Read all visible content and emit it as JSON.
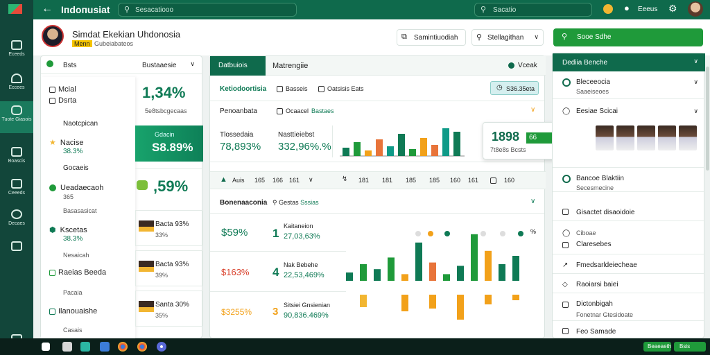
{
  "app": {
    "title": "Iпdoпusiat",
    "search_placeholder": "Sesacatiooo",
    "search2": "Sacatio",
    "profile_label": "Eeeus"
  },
  "rail": {
    "items": [
      {
        "label": "Eceeds"
      },
      {
        "label": "Eccees"
      },
      {
        "label": "Tuote Giasois"
      },
      {
        "label": "Boascis"
      },
      {
        "label": "Ceeeds"
      },
      {
        "label": "Decaes"
      }
    ]
  },
  "header": {
    "title": "Simdat Ekekian Uhdonosia",
    "badge": "Menn",
    "subtitle": "Gubeiabateos",
    "btn_simulasi": "Samintiuodiah",
    "btn_stellasi": "Stellagithan",
    "btn_green": "Sooe Sdhe"
  },
  "leftpanel": {
    "dropdown": "Bsts",
    "dropdown2": "Bustaaesie",
    "menu": [
      {
        "label": "Mcial"
      },
      {
        "label": "Dsrta"
      },
      {
        "label": "Naotcpican"
      },
      {
        "label": "Nacise",
        "sub": "38.3%"
      },
      {
        "label": "Gocaeis"
      },
      {
        "label": "Ueadaecaoh",
        "sub": "365"
      },
      {
        "label": "Basasasicat"
      },
      {
        "label": "Kscetas",
        "sub": "38.3%"
      },
      {
        "label": "Nesaicah"
      },
      {
        "label": "Raeias Beeda"
      },
      {
        "label": "Pacaia"
      },
      {
        "label": "Ilanouaishe"
      },
      {
        "label": "Casais"
      }
    ],
    "stat1": "1,34%",
    "stat1_sub": "5e8tsbcgecaas",
    "stat2_label": "Gdacin",
    "stat2": "S8.89%",
    "stat3": ",59%",
    "cand": [
      {
        "name": "Bacta 93%",
        "pct": "33%"
      },
      {
        "name": "Bacta 93%",
        "pct": "39%"
      },
      {
        "name": "Santa 30%",
        "pct": "35%"
      }
    ]
  },
  "main": {
    "tab1": "Datbuiois",
    "tab2": "Matrengiie",
    "tab_right": "Vceak",
    "filter_title": "Ketiodoortisia",
    "chip1": "Basseis",
    "chip2": "Oatsisis Eats",
    "btn_s": "S36.35eta",
    "summary_label": "Penoanbata",
    "summary_badge": "Ocaacel",
    "summary_badge2": "Bastaes",
    "kpi1_label": "Tlossedaia",
    "kpi1": "78,893%",
    "kpi2_label": "Nasttieiebst",
    "kpi2": "332,96%.%",
    "popup_value": "1898",
    "popup_label": "7t8e8s Bcsts",
    "popup_badge": "66",
    "toolbar": [
      "Auis",
      "165",
      "166",
      "161",
      "181",
      "181",
      "185",
      "185",
      "160",
      "161"
    ],
    "section_title": "Bonenaaconia",
    "section_sub": "Gestas",
    "section_sub2": "Sssias",
    "rows": [
      {
        "pct": "$59%",
        "rank": "1",
        "name": "Kaitaneion",
        "value": "27,03,63%"
      },
      {
        "pct": "$163%",
        "rank": "4",
        "name": "Nak Bebehe",
        "value": "22,53,469%"
      },
      {
        "pct": "$3255%",
        "rank": "3",
        "name": "Sitsiei Gnsienian",
        "value": "90,836.469%"
      }
    ],
    "chart_pct": "%"
  },
  "rightpanel": {
    "header": "Dediia Benche",
    "rows": [
      {
        "title": "Bleceeocia",
        "sub": "Saaeiseoes"
      },
      {
        "title": "Eesiae Scicai"
      },
      {
        "title": "Bancoe Blaktiin",
        "sub": "Secesmecine"
      },
      {
        "title": "Gisactet disaoidoie"
      },
      {
        "title": "Ciboae",
        "sub": "Claresebes"
      },
      {
        "title": "Fmedsarldeiecheae"
      },
      {
        "title": "Raoiarsi baiei"
      },
      {
        "title": "Dictonbigah",
        "sub": "Fonetnar Gtesidoate"
      },
      {
        "title": "Feo Samade"
      }
    ]
  },
  "statusbar": {
    "btn1": "Beaeaeth",
    "btn2": "Bsis"
  },
  "chart_data": {
    "type": "bar",
    "series": [
      {
        "name": "",
        "values": [
          12,
          20,
          8,
          24,
          14,
          32,
          10,
          26,
          16,
          40,
          35
        ]
      }
    ]
  }
}
